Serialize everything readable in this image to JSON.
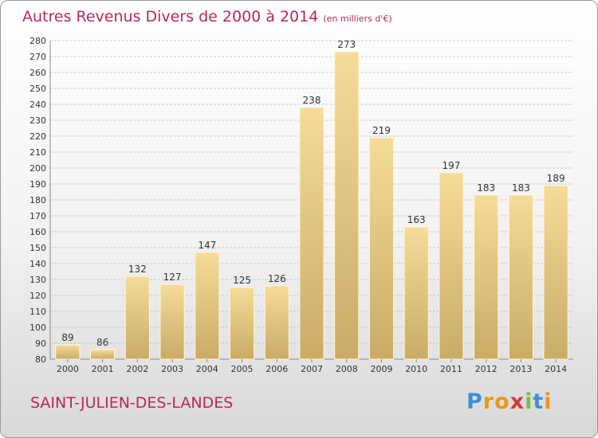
{
  "chart_data": {
    "type": "bar",
    "title": "Autres Revenus Divers de 2000 à 2014",
    "subtitle": "(en milliers d'€)",
    "categories": [
      "2000",
      "2001",
      "2002",
      "2003",
      "2004",
      "2005",
      "2006",
      "2007",
      "2008",
      "2009",
      "2010",
      "2011",
      "2012",
      "2013",
      "2014"
    ],
    "values": [
      89,
      86,
      132,
      127,
      147,
      125,
      126,
      238,
      273,
      219,
      163,
      197,
      183,
      183,
      189
    ],
    "ylim": [
      80,
      280
    ],
    "yticks": [
      80,
      90,
      100,
      110,
      120,
      130,
      140,
      150,
      160,
      170,
      180,
      190,
      200,
      210,
      220,
      230,
      240,
      250,
      260,
      270,
      280
    ],
    "grid": true,
    "bar_colors": {
      "top": "#f5dc98",
      "bottom": "#c9ab66"
    }
  },
  "location": "SAINT-JULIEN-DES-LANDES",
  "logo": {
    "letters": [
      "P",
      "r",
      "o",
      "x",
      "i",
      "t",
      "i"
    ],
    "colors": [
      "#3f8fd6",
      "#e8961e",
      "#e8961e",
      "#d23a3a",
      "#7cbf3a",
      "#3f8fd6",
      "#e8961e"
    ]
  },
  "colors": {
    "title": "#b8275c",
    "grid": "#c8c8c8",
    "axis": "#333333"
  }
}
